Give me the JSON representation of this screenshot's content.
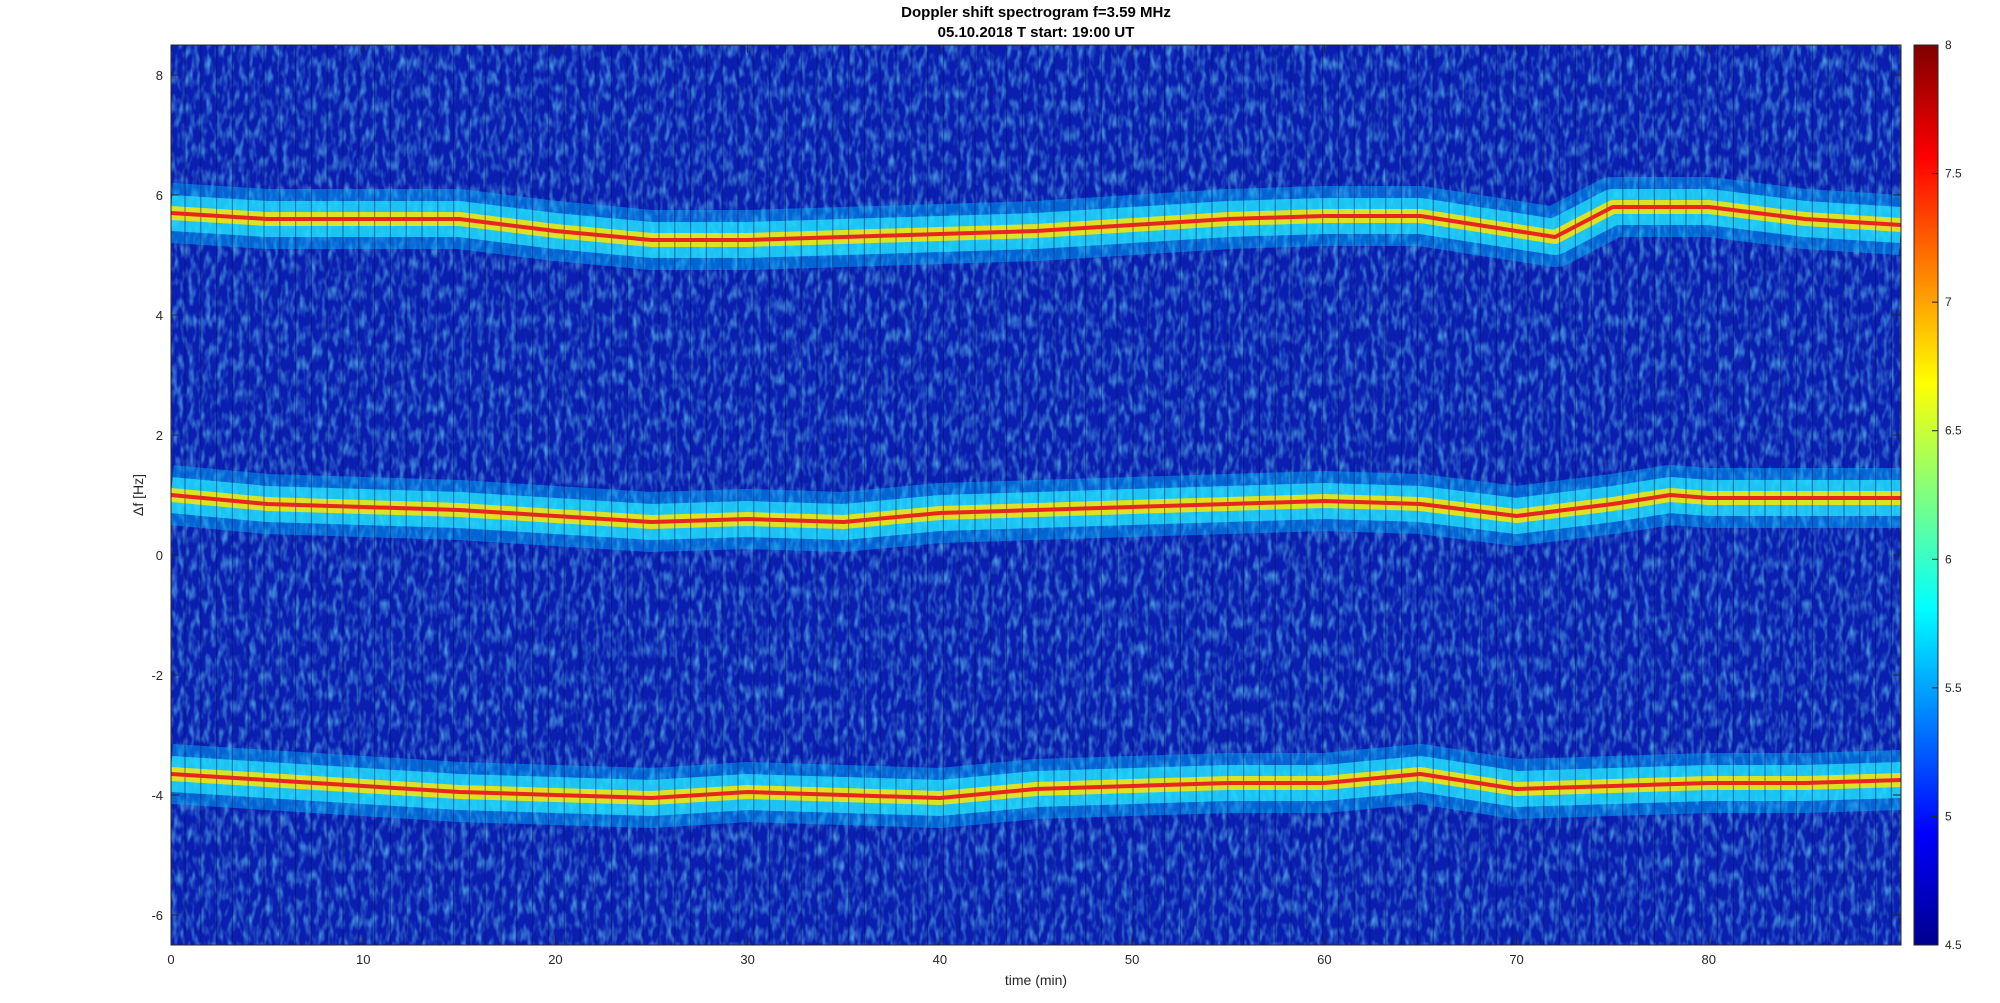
{
  "chart_data": {
    "type": "heatmap",
    "title": "Doppler shift spectrogram f=3.59 MHz",
    "subtitle": "05.10.2018   T start: 19:00 UT",
    "xlabel": "time (min)",
    "ylabel": "Δf [Hz]",
    "xlim": [
      0,
      90
    ],
    "ylim": [
      -6.5,
      8.5
    ],
    "x_ticks": [
      0,
      10,
      20,
      30,
      40,
      50,
      60,
      70,
      80
    ],
    "y_ticks": [
      8,
      6,
      4,
      2,
      0,
      -2,
      -4,
      -6
    ],
    "colormap": "jet",
    "colorbar": {
      "range": [
        4.5,
        8
      ],
      "ticks": [
        "8",
        "7.5",
        "7",
        "6.5",
        "6",
        "5.5",
        "5",
        "4.5"
      ]
    },
    "traces": [
      {
        "color": "#e6261f",
        "x": [
          0,
          5,
          10,
          15,
          20,
          25,
          30,
          35,
          40,
          45,
          50,
          55,
          60,
          65,
          70,
          72,
          75,
          80,
          85,
          90
        ],
        "y": [
          5.7,
          5.6,
          5.6,
          5.6,
          5.4,
          5.25,
          5.25,
          5.3,
          5.35,
          5.4,
          5.5,
          5.6,
          5.65,
          5.65,
          5.4,
          5.3,
          5.8,
          5.8,
          5.6,
          5.5
        ]
      },
      {
        "color": "#e6261f",
        "x": [
          0,
          5,
          10,
          15,
          20,
          25,
          30,
          35,
          40,
          45,
          50,
          55,
          60,
          65,
          70,
          75,
          78,
          80,
          85,
          90
        ],
        "y": [
          1.0,
          0.85,
          0.8,
          0.75,
          0.65,
          0.55,
          0.6,
          0.55,
          0.7,
          0.75,
          0.8,
          0.85,
          0.9,
          0.85,
          0.65,
          0.85,
          1.0,
          0.95,
          0.95,
          0.95
        ]
      },
      {
        "color": "#e6261f",
        "x": [
          0,
          5,
          10,
          15,
          20,
          25,
          30,
          35,
          40,
          45,
          50,
          55,
          60,
          65,
          70,
          75,
          80,
          85,
          90
        ],
        "y": [
          -3.65,
          -3.75,
          -3.85,
          -3.95,
          -4.0,
          -4.05,
          -3.95,
          -4.0,
          -4.05,
          -3.9,
          -3.85,
          -3.8,
          -3.8,
          -3.65,
          -3.9,
          -3.85,
          -3.8,
          -3.8,
          -3.75
        ]
      }
    ]
  }
}
